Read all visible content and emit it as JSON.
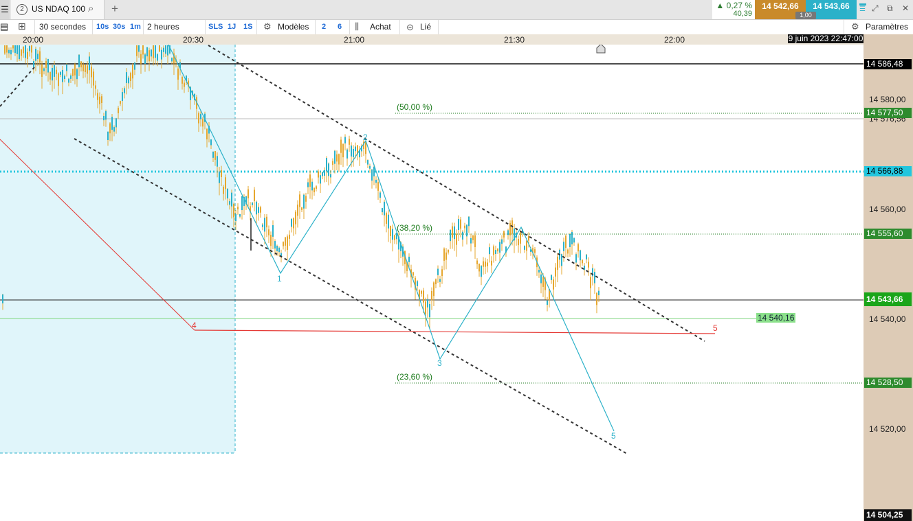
{
  "tab": {
    "number": "2",
    "title": "US NDAQ 100"
  },
  "quote": {
    "change_pct": "0,27 %",
    "change_abs": "40,39",
    "bid": "14 542,66",
    "ask": "14 543,66",
    "spread": "1,00"
  },
  "toolbar": {
    "interval": "30 secondes",
    "quick_intervals": [
      "10s",
      "30s",
      "1m"
    ],
    "range": "2 heures",
    "range_buttons": [
      "SLS",
      "1J",
      "1S"
    ],
    "models": "Modèles",
    "num_buttons": [
      "2",
      "6"
    ],
    "buy": "Achat",
    "linked": "Lié",
    "settings": "Paramètres"
  },
  "time_axis": {
    "labels": [
      "20:00",
      "20:30",
      "21:00",
      "21:30",
      "22:00"
    ],
    "cursor_date": "9 juin 2023 22:47:00"
  },
  "price_axis": {
    "labels": [
      "14 580,00",
      "14 576,56",
      "14 560,00",
      "14 540,00",
      "14 520,00"
    ]
  },
  "price_tags": {
    "black_line": "14 586,48",
    "fib_50": "14 577,50",
    "cyan_line": "14 566,88",
    "fib_382": "14 555,60",
    "current": "14 543,66",
    "fib_236": "14 528,50",
    "bottom": "14 504,25",
    "green_line": "14 540,16"
  },
  "fib_labels": {
    "fib_50": "(50,00 %)",
    "fib_382": "(38,20 %)",
    "fib_236": "(23,60 %)"
  },
  "wave_labels": [
    "1",
    "2",
    "3",
    "4",
    "5",
    "5"
  ],
  "colors": {
    "candle": "#e6a72e",
    "wave": "#2bb1c9",
    "fib": "#1b7a1b",
    "red": "#e53935",
    "current": "#1aa51a"
  }
}
